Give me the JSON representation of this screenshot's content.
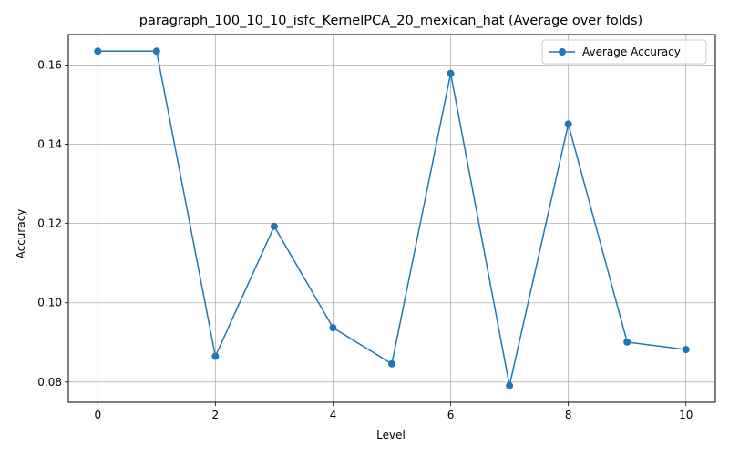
{
  "chart_data": {
    "type": "line",
    "title": "paragraph_100_10_10_isfc_KernelPCA_20_mexican_hat (Average over folds)",
    "xlabel": "Level",
    "ylabel": "Accuracy",
    "x": [
      0,
      1,
      2,
      3,
      4,
      5,
      6,
      7,
      8,
      9,
      10
    ],
    "series": [
      {
        "name": "Average Accuracy",
        "values": [
          0.1635,
          0.1635,
          0.0865,
          0.1193,
          0.0937,
          0.0846,
          0.1579,
          0.0791,
          0.1451,
          0.0901,
          0.0882
        ],
        "color": "#1f77b4",
        "marker": "circle"
      }
    ],
    "xlim": [
      -0.5,
      10.5
    ],
    "ylim": [
      0.0749,
      0.1677
    ],
    "xticks": [
      0,
      2,
      4,
      6,
      8,
      10
    ],
    "xtick_labels": [
      "0",
      "2",
      "4",
      "6",
      "8",
      "10"
    ],
    "yticks": [
      0.08,
      0.1,
      0.12,
      0.14,
      0.16
    ],
    "ytick_labels": [
      "0.08",
      "0.10",
      "0.12",
      "0.14",
      "0.16"
    ],
    "grid": true,
    "legend_position": "top-right"
  }
}
